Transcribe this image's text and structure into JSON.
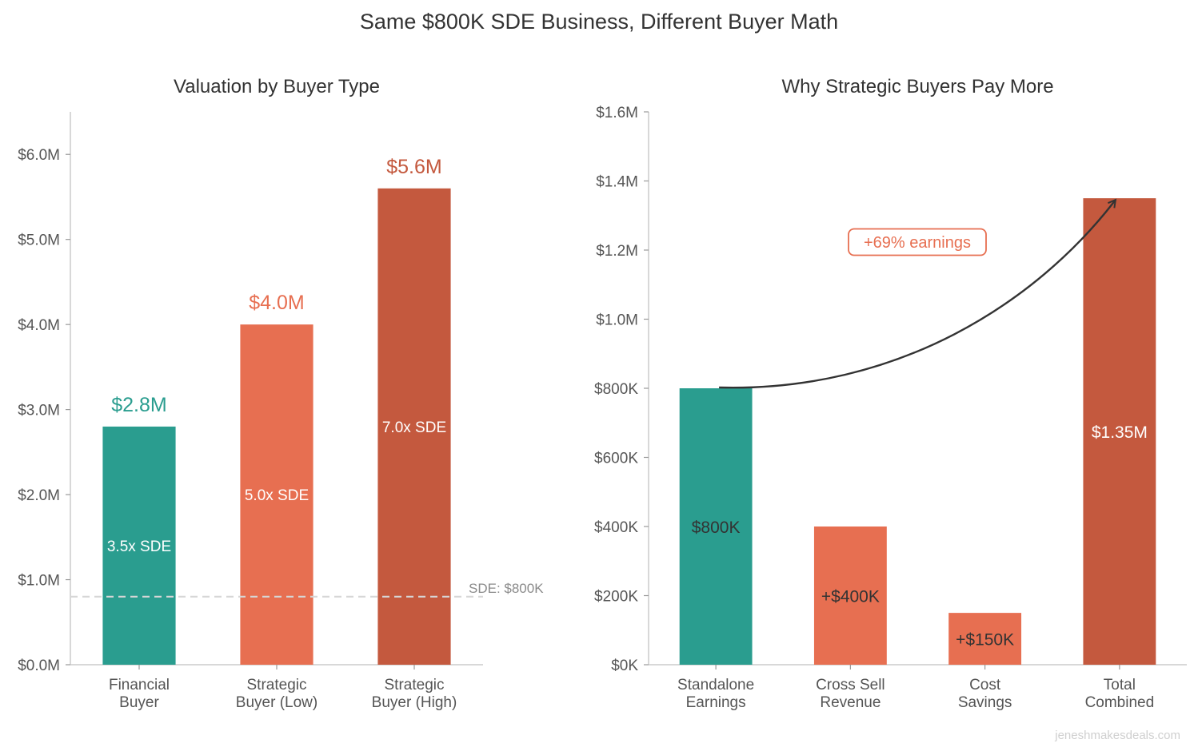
{
  "figure_title": "Same $800K SDE Business, Different Buyer Math",
  "watermark": "jeneshmakesdeals.com",
  "chart_data": [
    {
      "type": "bar",
      "title": "Valuation by Buyer Type",
      "categories": [
        [
          "Financial",
          "Buyer"
        ],
        [
          "Strategic",
          "Buyer (Low)"
        ],
        [
          "Strategic",
          "Buyer (High)"
        ]
      ],
      "values": [
        2.8,
        4.0,
        5.6
      ],
      "value_labels": [
        "$2.8M",
        "$4.0M",
        "$5.6M"
      ],
      "inner_labels": [
        "3.5x SDE",
        "5.0x SDE",
        "7.0x SDE"
      ],
      "colors": [
        "#2a9d8f",
        "#e76f51",
        "#c4593e"
      ],
      "ylim": [
        0,
        6.5
      ],
      "yticks": [
        0,
        1,
        2,
        3,
        4,
        5,
        6
      ],
      "ytick_labels": [
        "$0.0M",
        "$1.0M",
        "$2.0M",
        "$3.0M",
        "$4.0M",
        "$5.0M",
        "$6.0M"
      ],
      "reference_line": {
        "value": 0.8,
        "label": "SDE: $800K"
      }
    },
    {
      "type": "bar",
      "title": "Why Strategic Buyers Pay More",
      "categories": [
        [
          "Standalone",
          "Earnings"
        ],
        [
          "Cross Sell",
          "Revenue"
        ],
        [
          "Cost",
          "Savings"
        ],
        [
          "Total",
          "Combined"
        ]
      ],
      "values": [
        800,
        400,
        150,
        1350
      ],
      "inner_labels": [
        "$800K",
        "+$400K",
        "+$150K",
        "$1.35M"
      ],
      "inner_label_colors": [
        "#333333",
        "#333333",
        "#333333",
        "#ffffff"
      ],
      "colors": [
        "#2a9d8f",
        "#e76f51",
        "#e76f51",
        "#c4593e"
      ],
      "ylim": [
        0,
        1600
      ],
      "yticks": [
        0,
        200,
        400,
        600,
        800,
        1000,
        1200,
        1400,
        1600
      ],
      "ytick_labels": [
        "$0K",
        "$200K",
        "$400K",
        "$600K",
        "$800K",
        "$1.0M",
        "$1.2M",
        "$1.4M",
        "$1.6M"
      ],
      "annotation": {
        "text": "+69% earnings",
        "color": "#e76f51"
      }
    }
  ]
}
